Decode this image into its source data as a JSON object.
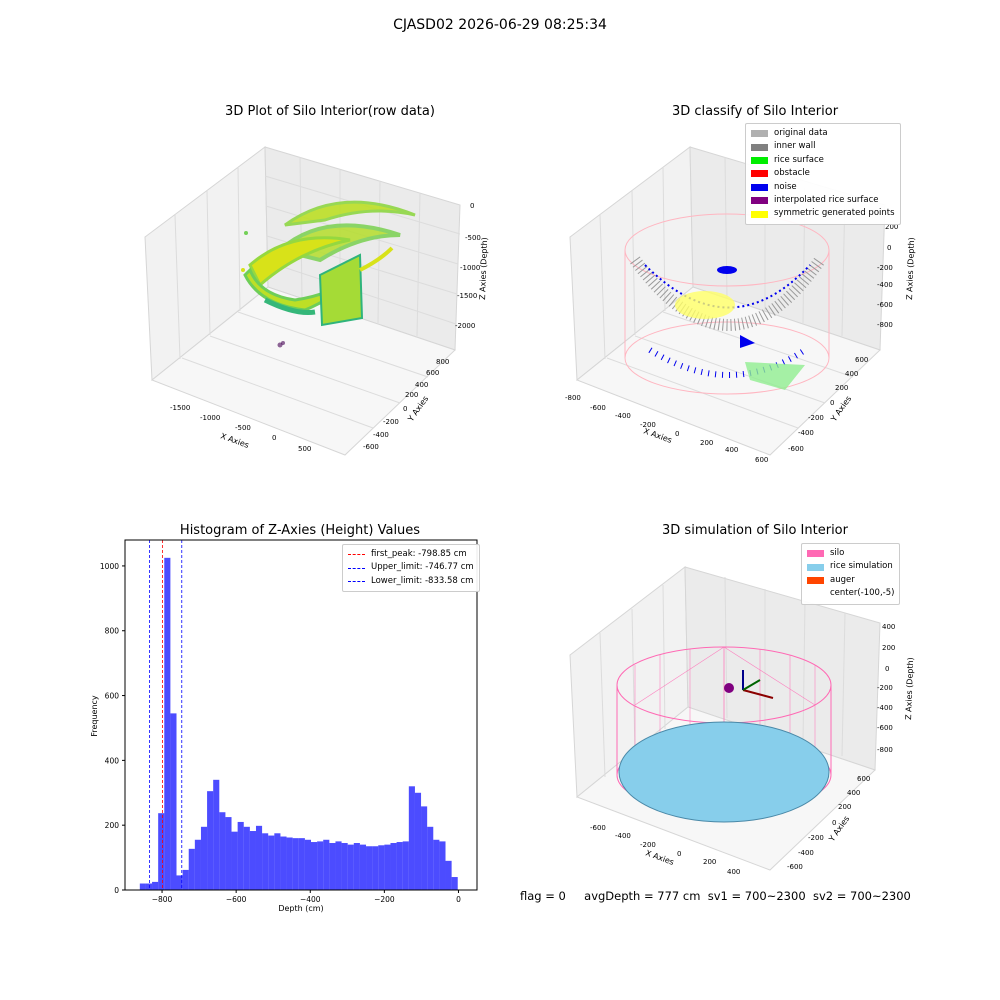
{
  "suptitle": "CJASD02 2026-06-29 08:25:34",
  "status": {
    "flag": "flag = 0",
    "avg_depth": "avgDepth = 777 cm",
    "sv1": "sv1 = 700~2300",
    "sv2": "sv2 = 700~2300"
  },
  "chart_data": [
    {
      "type": "scatter3d",
      "title": "3D Plot of Silo Interior(row data)",
      "xlabel": "X Axies",
      "ylabel": "Y Axies",
      "zlabel": "Z Axies (Depth)",
      "x_ticks": [
        "-1500",
        "-1000",
        "-500",
        "0",
        "500"
      ],
      "y_ticks": [
        "-600",
        "-400",
        "-200",
        "0",
        "200",
        "400",
        "600",
        "800"
      ],
      "z_ticks": [
        "0",
        "-500",
        "-1000",
        "-1500",
        "-2000"
      ],
      "colormap": "viridis",
      "colors": {
        "low": "#440154",
        "mid": "#21918c",
        "high": "#bddf26"
      }
    },
    {
      "type": "scatter3d",
      "title": "3D classify of Silo Interior",
      "xlabel": "X Axies",
      "ylabel": "Y Axies",
      "zlabel": "Z Axies (Depth)",
      "x_ticks": [
        "-800",
        "-600",
        "-400",
        "-200",
        "0",
        "200",
        "400",
        "600"
      ],
      "y_ticks": [
        "-600",
        "-400",
        "-200",
        "0",
        "200",
        "400",
        "600"
      ],
      "z_ticks": [
        "200",
        "0",
        "-200",
        "-400",
        "-600",
        "-800"
      ],
      "legend": [
        {
          "label": "original data",
          "color": "#b0b0b0"
        },
        {
          "label": "inner wall",
          "color": "#808080"
        },
        {
          "label": "rice surface",
          "color": "#00ee00"
        },
        {
          "label": "obstacle",
          "color": "#ff0000"
        },
        {
          "label": "noise",
          "color": "#0000ee"
        },
        {
          "label": "interpolated rice surface",
          "color": "#800080"
        },
        {
          "label": "symmetric generated points",
          "color": "#ffff00"
        }
      ],
      "legend_position": "top-right"
    },
    {
      "type": "bar",
      "title": "Histogram of Z-Axies (Height) Values",
      "xlabel": "Depth (cm)",
      "ylabel": "Frequency",
      "xlim": [
        -900,
        50
      ],
      "ylim": [
        0,
        1080
      ],
      "x_ticks": [
        -800,
        -600,
        -400,
        -200,
        0
      ],
      "y_ticks": [
        0,
        200,
        400,
        600,
        800,
        1000
      ],
      "bin_width": 16.5,
      "bar_color": "#0000ff",
      "bins": [
        {
          "x": -860,
          "y": 20
        },
        {
          "x": -843.5,
          "y": 20
        },
        {
          "x": -827,
          "y": 25
        },
        {
          "x": -810.5,
          "y": 237
        },
        {
          "x": -794,
          "y": 1025
        },
        {
          "x": -777.5,
          "y": 545
        },
        {
          "x": -761,
          "y": 45
        },
        {
          "x": -744.5,
          "y": 62
        },
        {
          "x": -728,
          "y": 127
        },
        {
          "x": -711.5,
          "y": 155
        },
        {
          "x": -695,
          "y": 195
        },
        {
          "x": -678.5,
          "y": 305
        },
        {
          "x": -662,
          "y": 340
        },
        {
          "x": -645.5,
          "y": 240
        },
        {
          "x": -629,
          "y": 225
        },
        {
          "x": -612.5,
          "y": 180
        },
        {
          "x": -596,
          "y": 210
        },
        {
          "x": -579.5,
          "y": 195
        },
        {
          "x": -563,
          "y": 182
        },
        {
          "x": -546.5,
          "y": 198
        },
        {
          "x": -530,
          "y": 175
        },
        {
          "x": -513.5,
          "y": 168
        },
        {
          "x": -497,
          "y": 175
        },
        {
          "x": -480.5,
          "y": 165
        },
        {
          "x": -464,
          "y": 162
        },
        {
          "x": -447.5,
          "y": 160
        },
        {
          "x": -431,
          "y": 160
        },
        {
          "x": -414.5,
          "y": 155
        },
        {
          "x": -398,
          "y": 148
        },
        {
          "x": -381.5,
          "y": 150
        },
        {
          "x": -365,
          "y": 155
        },
        {
          "x": -348.5,
          "y": 145
        },
        {
          "x": -332,
          "y": 150
        },
        {
          "x": -315.5,
          "y": 145
        },
        {
          "x": -299,
          "y": 140
        },
        {
          "x": -282.5,
          "y": 145
        },
        {
          "x": -266,
          "y": 140
        },
        {
          "x": -249.5,
          "y": 135
        },
        {
          "x": -233,
          "y": 135
        },
        {
          "x": -216.5,
          "y": 138
        },
        {
          "x": -200,
          "y": 140
        },
        {
          "x": -183.5,
          "y": 145
        },
        {
          "x": -167,
          "y": 148
        },
        {
          "x": -150.5,
          "y": 150
        },
        {
          "x": -134,
          "y": 320
        },
        {
          "x": -117.5,
          "y": 300
        },
        {
          "x": -101,
          "y": 258
        },
        {
          "x": -84.5,
          "y": 195
        },
        {
          "x": -68,
          "y": 155
        },
        {
          "x": -51.5,
          "y": 150
        },
        {
          "x": -35,
          "y": 90
        },
        {
          "x": -18.5,
          "y": 40
        }
      ],
      "vlines": [
        {
          "label": "first_peak: -798.85 cm",
          "x": -798.85,
          "color": "#ff0000"
        },
        {
          "label": "Upper_limit: -746.77 cm",
          "x": -746.77,
          "color": "#0000ff"
        },
        {
          "label": "Lower_limit: -833.58 cm",
          "x": -833.58,
          "color": "#0000ff"
        }
      ],
      "legend_position": "top-right"
    },
    {
      "type": "surface3d",
      "title": "3D simulation of Silo Interior",
      "xlabel": "X Axies",
      "ylabel": "Y Axies",
      "zlabel": "Z Axies (Depth)",
      "x_ticks": [
        "-600",
        "-400",
        "-200",
        "0",
        "200",
        "400"
      ],
      "y_ticks": [
        "-600",
        "-400",
        "-200",
        "0",
        "200",
        "400",
        "600"
      ],
      "z_ticks": [
        "400",
        "200",
        "0",
        "-200",
        "-400",
        "-600",
        "-800"
      ],
      "legend": [
        {
          "label": "silo",
          "color": "#ff69b4"
        },
        {
          "label": "rice simulation",
          "color": "#87ceeb"
        },
        {
          "label": "auger",
          "color": "#ff4500"
        },
        {
          "label": "center(-100,-5)",
          "color": ""
        }
      ],
      "legend_position": "top-right"
    }
  ]
}
